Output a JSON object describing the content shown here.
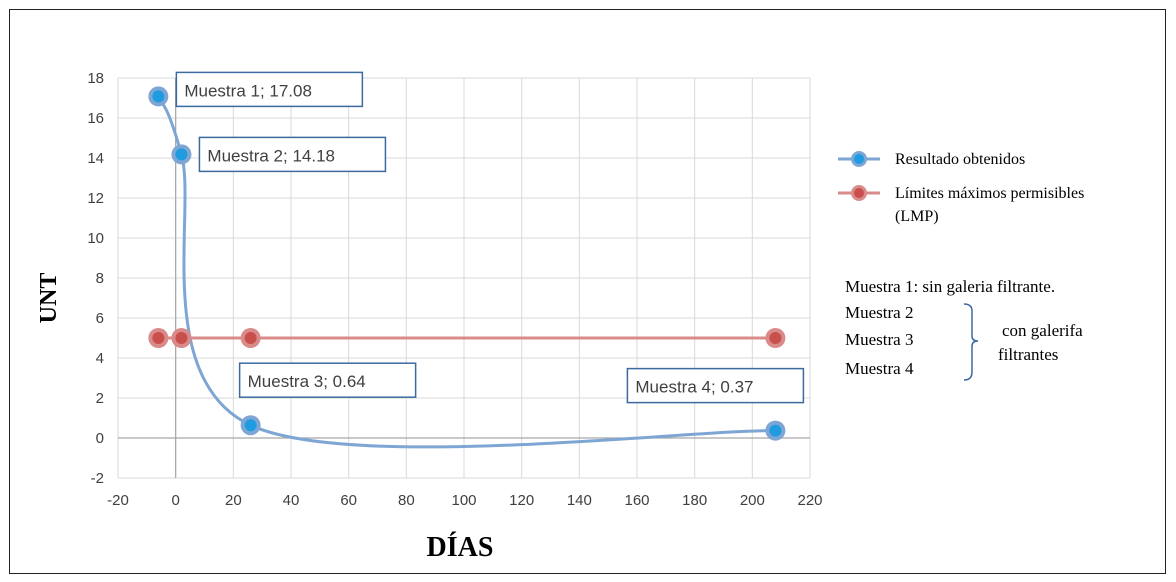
{
  "chart_data": {
    "type": "scatter",
    "xlabel": "DÍAS",
    "ylabel": "UNT",
    "xlim": [
      -20,
      220
    ],
    "ylim": [
      -2,
      18
    ],
    "x_ticks": [
      -20,
      0,
      20,
      40,
      60,
      80,
      100,
      120,
      140,
      160,
      180,
      200,
      220
    ],
    "y_ticks": [
      -2,
      0,
      2,
      4,
      6,
      8,
      10,
      12,
      14,
      16,
      18
    ],
    "grid": true,
    "legend_position": "right",
    "series": [
      {
        "name": "Resultado obtenidos",
        "color": "#7ea6d4",
        "marker_color": "#1f9be0",
        "smooth": true,
        "points": [
          {
            "x": -6,
            "y": 17.08,
            "label": "Muestra 1; 17.08"
          },
          {
            "x": 2,
            "y": 14.18,
            "label": "Muestra 2; 14.18"
          },
          {
            "x": 26,
            "y": 0.64,
            "label": "Muestra 3; 0.64"
          },
          {
            "x": 208,
            "y": 0.37,
            "label": "Muestra 4; 0.37"
          }
        ]
      },
      {
        "name_lines": [
          "Límites máximos permisibles",
          "(LMP)"
        ],
        "color": "#d98b89",
        "marker_color": "#c94f4c",
        "smooth": false,
        "points": [
          {
            "x": -6,
            "y": 5
          },
          {
            "x": 2,
            "y": 5
          },
          {
            "x": 26,
            "y": 5
          },
          {
            "x": 208,
            "y": 5
          }
        ]
      }
    ],
    "notes": {
      "line1": "Muestra 1: sin galeria filtrante.",
      "group_items": [
        "Muestra 2",
        "Muestra 3",
        "Muestra 4"
      ],
      "group_label": [
        "con galerifa",
        "filtrantes"
      ]
    }
  }
}
